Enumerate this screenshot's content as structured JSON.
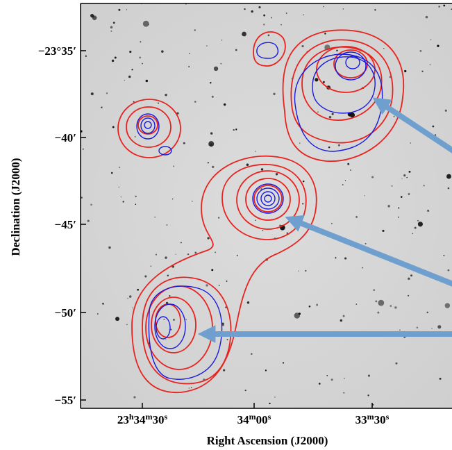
{
  "figure": {
    "x_label": "Right Ascension (J2000)",
    "y_label": "Declination (J2000)",
    "x_ticks": [
      [
        "23",
        "h",
        "34",
        "m",
        "30",
        "s"
      ],
      [
        "34",
        "m",
        "00",
        "s"
      ],
      [
        "33",
        "m",
        "30",
        "s"
      ]
    ],
    "y_ticks": [
      "−23°35′",
      "−40′",
      "−45′",
      "−50′",
      "−55′"
    ]
  }
}
